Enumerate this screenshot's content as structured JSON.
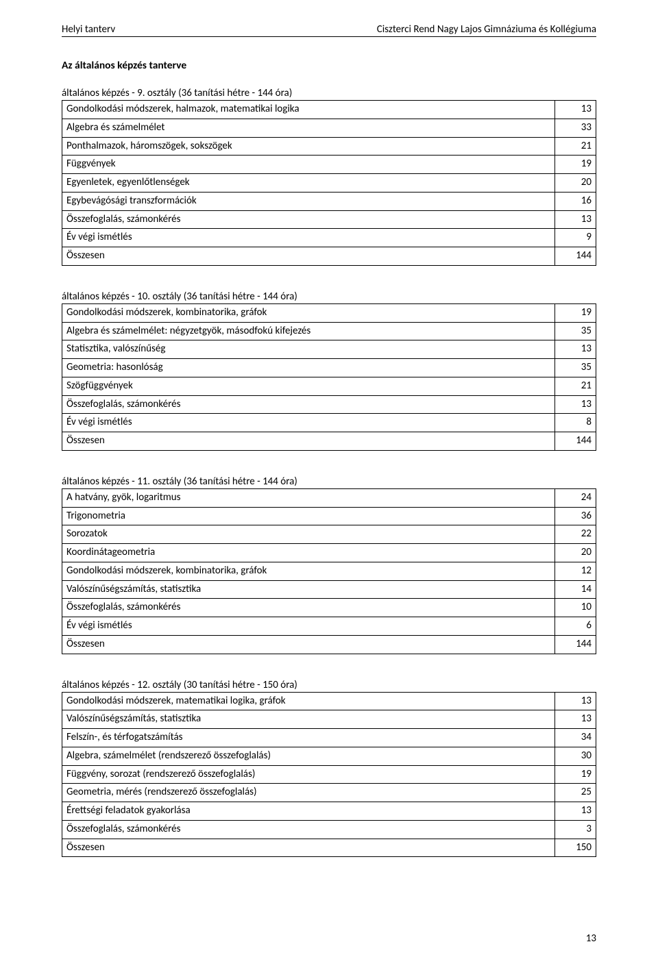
{
  "header": {
    "left": "Helyi tanterv",
    "right": "Ciszterci Rend Nagy Lajos Gimnáziuma és Kollégiuma"
  },
  "main_title": "Az általános képzés tanterve",
  "page_number": "13",
  "tables": [
    {
      "caption": "általános képzés - 9. osztály (36 tanítási hétre - 144 óra)",
      "rows": [
        {
          "label": "Gondolkodási módszerek, halmazok, matematikai logika",
          "value": "13"
        },
        {
          "label": "Algebra és számelmélet",
          "value": "33"
        },
        {
          "label": "Ponthalmazok, háromszögek, sokszögek",
          "value": "21"
        },
        {
          "label": "Függvények",
          "value": "19"
        },
        {
          "label": "Egyenletek, egyenlőtlenségek",
          "value": "20"
        },
        {
          "label": "Egybevágósági transzformációk",
          "value": "16"
        },
        {
          "label": "Összefoglalás, számonkérés",
          "value": "13"
        },
        {
          "label": "Év végi ismétlés",
          "value": "9"
        },
        {
          "label": "Összesen",
          "value": "144"
        }
      ]
    },
    {
      "caption": "általános képzés - 10. osztály (36 tanítási hétre - 144 óra)",
      "rows": [
        {
          "label": "Gondolkodási módszerek, kombinatorika, gráfok",
          "value": "19"
        },
        {
          "label": "Algebra és számelmélet: négyzetgyök, másodfokú kifejezés",
          "value": "35"
        },
        {
          "label": "Statisztika, valószínűség",
          "value": "13"
        },
        {
          "label": "Geometria: hasonlóság",
          "value": "35"
        },
        {
          "label": "Szögfüggvények",
          "value": "21"
        },
        {
          "label": "Összefoglalás, számonkérés",
          "value": "13"
        },
        {
          "label": "Év végi ismétlés",
          "value": "8"
        },
        {
          "label": "Összesen",
          "value": "144"
        }
      ]
    },
    {
      "caption": "általános képzés - 11. osztály (36 tanítási hétre - 144 óra)",
      "rows": [
        {
          "label": "A hatvány, gyök, logaritmus",
          "value": "24"
        },
        {
          "label": "Trigonometria",
          "value": "36"
        },
        {
          "label": "Sorozatok",
          "value": "22"
        },
        {
          "label": "Koordinátageometria",
          "value": "20"
        },
        {
          "label": "Gondolkodási módszerek, kombinatorika, gráfok",
          "value": "12"
        },
        {
          "label": "Valószínűségszámítás, statisztika",
          "value": "14"
        },
        {
          "label": "Összefoglalás, számonkérés",
          "value": "10"
        },
        {
          "label": "Év végi ismétlés",
          "value": "6"
        },
        {
          "label": "Összesen",
          "value": "144"
        }
      ]
    },
    {
      "caption": "általános képzés - 12. osztály (30 tanítási hétre - 150 óra)",
      "rows": [
        {
          "label": "Gondolkodási módszerek, matematikai logika, gráfok",
          "value": "13"
        },
        {
          "label": "Valószínűségszámítás, statisztika",
          "value": "13"
        },
        {
          "label": "Felszín-, és térfogatszámítás",
          "value": "34"
        },
        {
          "label": "Algebra, számelmélet (rendszerező összefoglalás)",
          "value": "30"
        },
        {
          "label": "Függvény, sorozat (rendszerező összefoglalás)",
          "value": "19"
        },
        {
          "label": "Geometria, mérés (rendszerező összefoglalás)",
          "value": "25"
        },
        {
          "label": "Érettségi feladatok gyakorlása",
          "value": "13"
        },
        {
          "label": "Összefoglalás, számonkérés",
          "value": "3"
        },
        {
          "label": "Összesen",
          "value": "150"
        }
      ]
    }
  ]
}
